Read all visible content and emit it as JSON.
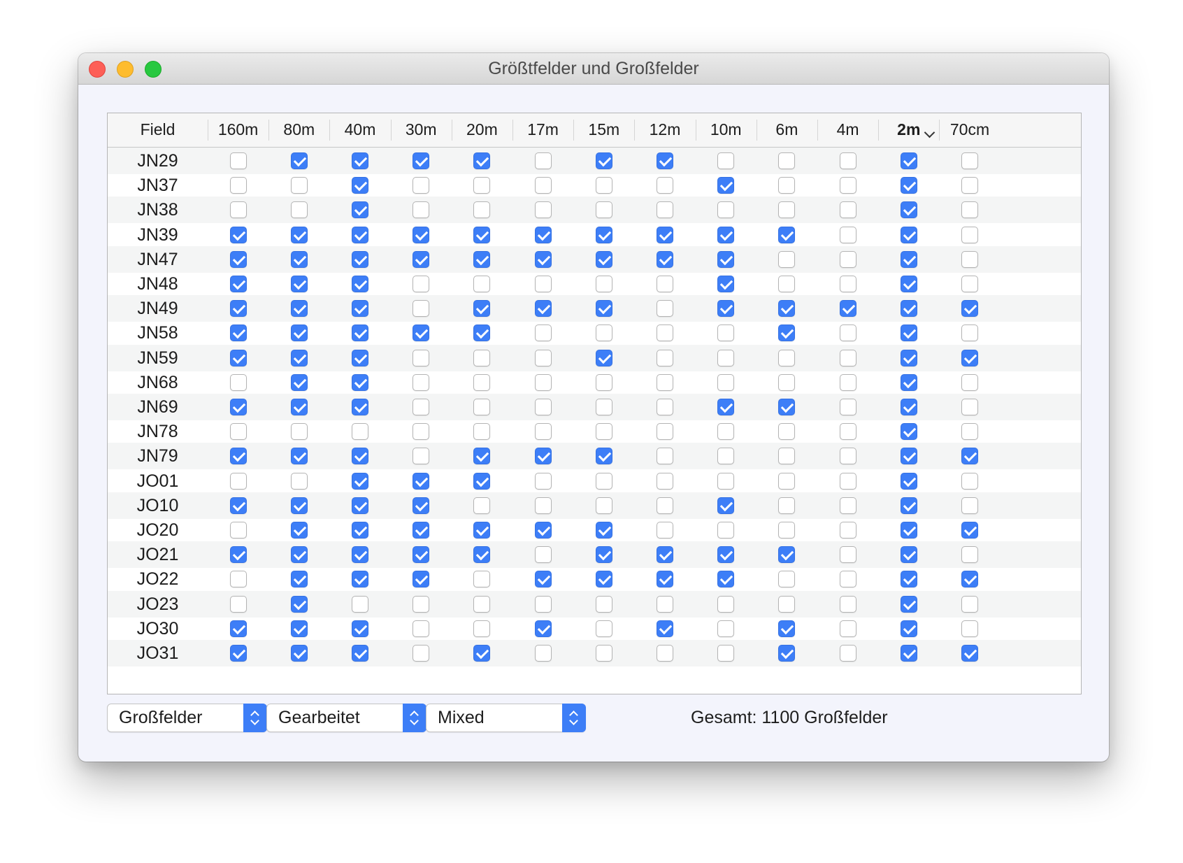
{
  "window": {
    "title": "Größtfelder und Großfelder"
  },
  "columns": [
    "Field",
    "160m",
    "80m",
    "40m",
    "30m",
    "20m",
    "17m",
    "15m",
    "12m",
    "10m",
    "6m",
    "4m",
    "2m",
    "70cm"
  ],
  "sorted_column": "2m",
  "rows": [
    {
      "field": "JN29",
      "checks": [
        0,
        1,
        1,
        1,
        1,
        0,
        1,
        1,
        0,
        0,
        0,
        1,
        0
      ]
    },
    {
      "field": "JN37",
      "checks": [
        0,
        0,
        1,
        0,
        0,
        0,
        0,
        0,
        1,
        0,
        0,
        1,
        0
      ]
    },
    {
      "field": "JN38",
      "checks": [
        0,
        0,
        1,
        0,
        0,
        0,
        0,
        0,
        0,
        0,
        0,
        1,
        0
      ]
    },
    {
      "field": "JN39",
      "checks": [
        1,
        1,
        1,
        1,
        1,
        1,
        1,
        1,
        1,
        1,
        0,
        1,
        0
      ]
    },
    {
      "field": "JN47",
      "checks": [
        1,
        1,
        1,
        1,
        1,
        1,
        1,
        1,
        1,
        0,
        0,
        1,
        0
      ]
    },
    {
      "field": "JN48",
      "checks": [
        1,
        1,
        1,
        0,
        0,
        0,
        0,
        0,
        1,
        0,
        0,
        1,
        0
      ]
    },
    {
      "field": "JN49",
      "checks": [
        1,
        1,
        1,
        0,
        1,
        1,
        1,
        0,
        1,
        1,
        1,
        1,
        1
      ]
    },
    {
      "field": "JN58",
      "checks": [
        1,
        1,
        1,
        1,
        1,
        0,
        0,
        0,
        0,
        1,
        0,
        1,
        0
      ]
    },
    {
      "field": "JN59",
      "checks": [
        1,
        1,
        1,
        0,
        0,
        0,
        1,
        0,
        0,
        0,
        0,
        1,
        1
      ]
    },
    {
      "field": "JN68",
      "checks": [
        0,
        1,
        1,
        0,
        0,
        0,
        0,
        0,
        0,
        0,
        0,
        1,
        0
      ]
    },
    {
      "field": "JN69",
      "checks": [
        1,
        1,
        1,
        0,
        0,
        0,
        0,
        0,
        1,
        1,
        0,
        1,
        0
      ]
    },
    {
      "field": "JN78",
      "checks": [
        0,
        0,
        0,
        0,
        0,
        0,
        0,
        0,
        0,
        0,
        0,
        1,
        0
      ]
    },
    {
      "field": "JN79",
      "checks": [
        1,
        1,
        1,
        0,
        1,
        1,
        1,
        0,
        0,
        0,
        0,
        1,
        1
      ]
    },
    {
      "field": "JO01",
      "checks": [
        0,
        0,
        1,
        1,
        1,
        0,
        0,
        0,
        0,
        0,
        0,
        1,
        0
      ]
    },
    {
      "field": "JO10",
      "checks": [
        1,
        1,
        1,
        1,
        0,
        0,
        0,
        0,
        1,
        0,
        0,
        1,
        0
      ]
    },
    {
      "field": "JO20",
      "checks": [
        0,
        1,
        1,
        1,
        1,
        1,
        1,
        0,
        0,
        0,
        0,
        1,
        1
      ]
    },
    {
      "field": "JO21",
      "checks": [
        1,
        1,
        1,
        1,
        1,
        0,
        1,
        1,
        1,
        1,
        0,
        1,
        0
      ]
    },
    {
      "field": "JO22",
      "checks": [
        0,
        1,
        1,
        1,
        0,
        1,
        1,
        1,
        1,
        0,
        0,
        1,
        1
      ]
    },
    {
      "field": "JO23",
      "checks": [
        0,
        1,
        0,
        0,
        0,
        0,
        0,
        0,
        0,
        0,
        0,
        1,
        0
      ]
    },
    {
      "field": "JO30",
      "checks": [
        1,
        1,
        1,
        0,
        0,
        1,
        0,
        1,
        0,
        1,
        0,
        1,
        0
      ]
    },
    {
      "field": "JO31",
      "checks": [
        1,
        1,
        1,
        0,
        1,
        0,
        0,
        0,
        0,
        1,
        0,
        1,
        1
      ]
    }
  ],
  "controls": {
    "mode_select": "Großfelder",
    "status_select": "Gearbeitet",
    "band_select": "Mixed",
    "total_text": "Gesamt: 1100 Großfelder"
  },
  "colors": {
    "accent": "#3d7ef7",
    "window_bg": "#f3f4fc"
  }
}
